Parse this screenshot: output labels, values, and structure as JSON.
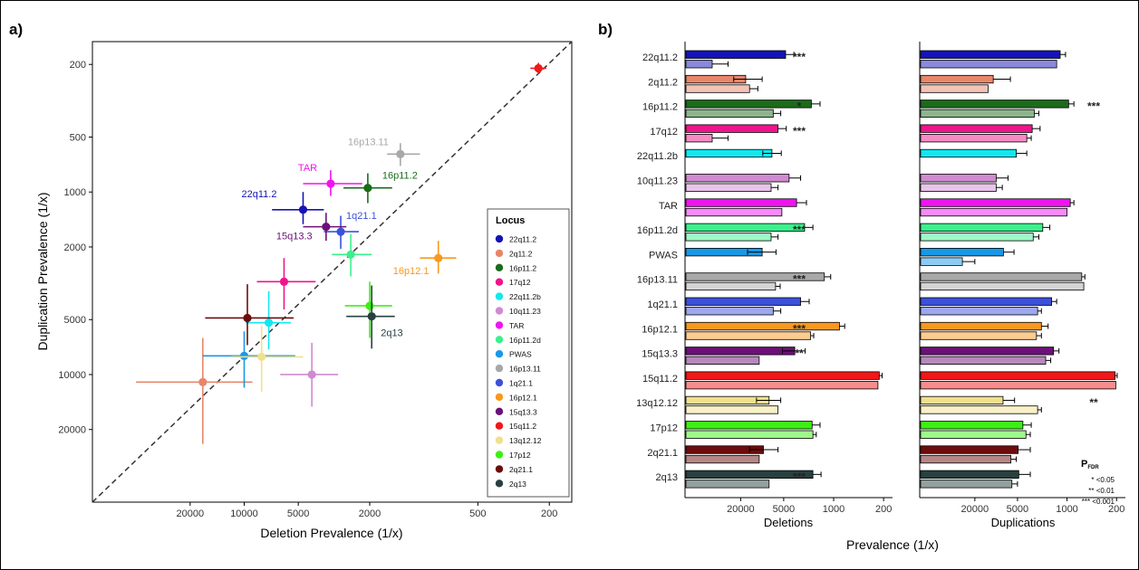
{
  "panel_a": {
    "tag": "a)",
    "chart_data": {
      "type": "scatter",
      "xlabel": "Deletion Prevalence (1/x)",
      "ylabel": "Duplication Prevalence (1/x)",
      "scale": "log (reversed)",
      "xlim": [
        70000,
        150
      ],
      "ylim": [
        50000,
        150
      ],
      "x_ticks": [
        20000,
        10000,
        5000,
        2000,
        500,
        200
      ],
      "y_ticks": [
        200,
        500,
        1000,
        2000,
        5000,
        10000,
        20000
      ],
      "grid": false,
      "legend_title": "Locus",
      "legend_position": "right",
      "diagonal": "x = y (dashed)",
      "points": [
        {
          "locus": "22q11.2",
          "x": 4700,
          "y": 1250,
          "x_err": [
            7000,
            3600
          ],
          "y_err": [
            1500,
            1000
          ],
          "color": "#1414b8",
          "label": "22q11.2"
        },
        {
          "locus": "2q11.2",
          "x": 17000,
          "y": 11000,
          "x_err": [
            40000,
            9000
          ],
          "y_err": [
            24000,
            6300
          ],
          "color": "#e8866c",
          "label": ""
        },
        {
          "locus": "16p11.2",
          "x": 2050,
          "y": 950,
          "x_err": [
            2800,
            1500
          ],
          "y_err": [
            1150,
            790
          ],
          "color": "#1a6b1a",
          "label": "16p11.2"
        },
        {
          "locus": "17q12",
          "x": 6000,
          "y": 3100,
          "x_err": [
            8500,
            4000
          ],
          "y_err": [
            4400,
            2300
          ],
          "color": "#f0148c",
          "label": ""
        },
        {
          "locus": "22q11.2b",
          "x": 7300,
          "y": 5200,
          "x_err": [
            9800,
            5500
          ],
          "y_err": [
            7300,
            3500
          ],
          "color": "#10e8f0",
          "label": ""
        },
        {
          "locus": "10q11.23",
          "x": 4200,
          "y": 10000,
          "x_err": [
            6300,
            3000
          ],
          "y_err": [
            15000,
            6700
          ],
          "color": "#d08ad0",
          "label": ""
        },
        {
          "locus": "TAR",
          "x": 3300,
          "y": 900,
          "x_err": [
            4700,
            2200
          ],
          "y_err": [
            1050,
            760
          ],
          "color": "#f014f0",
          "label": "TAR"
        },
        {
          "locus": "16p11.2d",
          "x": 2550,
          "y": 2200,
          "x_err": [
            3250,
            1950
          ],
          "y_err": [
            2900,
            1700
          ],
          "color": "#3cf08c",
          "label": ""
        },
        {
          "locus": "PWAS",
          "x": 10000,
          "y": 7900,
          "x_err": [
            17000,
            5200
          ],
          "y_err": [
            11800,
            5800
          ],
          "color": "#1898e8",
          "label": ""
        },
        {
          "locus": "16p13.11",
          "x": 1350,
          "y": 620,
          "x_err": [
            1600,
            1050
          ],
          "y_err": [
            720,
            540
          ],
          "color": "#a8a8a8",
          "label": "16p13.11"
        },
        {
          "locus": "1q21.1",
          "x": 2900,
          "y": 1650,
          "x_err": [
            3600,
            2300
          ],
          "y_err": [
            2050,
            1350
          ],
          "color": "#3c50dc",
          "label": "1q21.1"
        },
        {
          "locus": "16p12.1",
          "x": 830,
          "y": 2300,
          "x_err": [
            1050,
            660
          ],
          "y_err": [
            2800,
            1850
          ],
          "color": "#f89820",
          "label": "16p12.1"
        },
        {
          "locus": "15q13.3",
          "x": 3500,
          "y": 1550,
          "x_err": [
            4700,
            2700
          ],
          "y_err": [
            1850,
            1300
          ],
          "color": "#6c1078",
          "label": "15q13.3"
        },
        {
          "locus": "15q11.2",
          "x": 230,
          "y": 210,
          "x_err": [
            255,
            208
          ],
          "y_err": [
            225,
            196
          ],
          "color": "#f01818",
          "label": ""
        },
        {
          "locus": "13q12.12",
          "x": 8000,
          "y": 8000,
          "x_err": [
            11800,
            4700
          ],
          "y_err": [
            12400,
            5400
          ],
          "color": "#f0e08c",
          "label": ""
        },
        {
          "locus": "17p12",
          "x": 2000,
          "y": 4200,
          "x_err": [
            2750,
            1500
          ],
          "y_err": [
            6300,
            3100
          ],
          "color": "#3cf014",
          "label": ""
        },
        {
          "locus": "2q21.1",
          "x": 9600,
          "y": 4900,
          "x_err": [
            16500,
            5300
          ],
          "y_err": [
            6900,
            3200
          ],
          "color": "#6c0c0c",
          "label": ""
        },
        {
          "locus": "2q13",
          "x": 1950,
          "y": 4800,
          "x_err": [
            2700,
            1450
          ],
          "y_err": [
            7200,
            3250
          ],
          "color": "#284040",
          "label": "2q13"
        }
      ]
    }
  },
  "panel_b": {
    "tag": "b)",
    "shared_xlabel": "Prevalence (1/x)",
    "chart_data": [
      {
        "type": "bar",
        "orientation": "horizontal",
        "xlabel": "Deletions",
        "x_ticks": [
          20000,
          5000,
          1000,
          200
        ],
        "scale": "log (reversed)",
        "categories": [
          "22q11.2",
          "2q11.2",
          "16p11.2",
          "17q12",
          "22q11.2b",
          "10q11.23",
          "TAR",
          "16p11.2d",
          "PWAS",
          "16p13.11",
          "1q21.1",
          "16p12.1",
          "15q13.3",
          "15q11.2",
          "13q12.12",
          "17p12",
          "2q21.1",
          "2q13"
        ],
        "series": [
          {
            "values": [
              4700,
              17000,
              2050,
              6000,
              7300,
              4200,
              3300,
              2550,
              10000,
              1350,
              2900,
              830,
              3500,
              230,
              8000,
              2000,
              9600,
              1950
            ],
            "err_hi": [
              3600,
              10000,
              1550,
              4600,
              5400,
              2900,
              2400,
              1950,
              6400,
              1100,
              2200,
              700,
              2500,
              210,
              5500,
              1550,
              6000,
              1500
            ],
            "err_lo": [
              null,
              25000,
              null,
              null,
              9800,
              null,
              null,
              null,
              16000,
              null,
              null,
              null,
              5200,
              null,
              12000,
              null,
              15000,
              null
            ]
          },
          {
            "values": [
              50000,
              15000,
              7000,
              50000,
              null,
              7500,
              5300,
              7500,
              null,
              6500,
              7000,
              2100,
              11000,
              240,
              6000,
              1950,
              11000,
              8000
            ],
            "err_hi": [
              30000,
              11500,
              5500,
              null,
              null,
              6000,
              null,
              6000,
              null,
              5600,
              5500,
              1900,
              null,
              null,
              null,
              1750,
              null,
              null
            ],
            "err_lo": [
              null,
              null,
              null,
              30000,
              null,
              null,
              null,
              null,
              null,
              null,
              null,
              null,
              null,
              null,
              null,
              null,
              null,
              null
            ]
          }
        ],
        "significance": [
          "***",
          "",
          "*",
          "***",
          "",
          "",
          "",
          "***",
          "",
          "***",
          "",
          "***",
          "**",
          "",
          "",
          "",
          "",
          "***"
        ]
      },
      {
        "type": "bar",
        "orientation": "horizontal",
        "xlabel": "Duplications",
        "x_ticks": [
          20000,
          5000,
          1000,
          200
        ],
        "scale": "log (reversed)",
        "categories": [
          "22q11.2",
          "2q11.2",
          "16p11.2",
          "17q12",
          "22q11.2b",
          "10q11.23",
          "TAR",
          "16p11.2d",
          "PWAS",
          "16p13.11",
          "1q21.1",
          "16p12.1",
          "15q13.3",
          "15q11.2",
          "13q12.12",
          "17p12",
          "2q21.1",
          "2q13"
        ],
        "series": [
          {
            "values": [
              1250,
              11000,
              950,
              3100,
              5200,
              10000,
              900,
              2200,
              7900,
              620,
              1650,
              2300,
              1550,
              210,
              8000,
              4200,
              4900,
              4800
            ],
            "err_hi": [
              1050,
              6300,
              800,
              2400,
              3700,
              6800,
              800,
              1750,
              5600,
              560,
              1400,
              1850,
              1300,
              196,
              5500,
              3200,
              3300,
              3300
            ],
            "err_lo": [
              null,
              null,
              null,
              null,
              null,
              null,
              null,
              null,
              null,
              null,
              null,
              null,
              null,
              null,
              null,
              null,
              null,
              null
            ]
          },
          {
            "values": [
              1400,
              13000,
              2900,
              3700,
              null,
              10000,
              1000,
              3000,
              30000,
              580,
              2600,
              2700,
              2000,
              205,
              2600,
              3800,
              6200,
              6000
            ],
            "err_hi": [
              null,
              null,
              2500,
              3200,
              null,
              8200,
              null,
              2500,
              20000,
              null,
              2300,
              2300,
              1700,
              null,
              2300,
              3300,
              5200,
              5000
            ],
            "err_lo": [
              null,
              null,
              null,
              null,
              null,
              null,
              null,
              null,
              null,
              null,
              null,
              null,
              null,
              null,
              null,
              null,
              null,
              null
            ]
          }
        ],
        "significance": [
          "",
          "",
          "***",
          "",
          "",
          "",
          "",
          "",
          "",
          "",
          "",
          "",
          "",
          "",
          "**",
          "",
          "",
          ""
        ]
      }
    ],
    "pfdr_legend": {
      "title": "P",
      "subscript": "FDR",
      "rows": [
        "* <0.05",
        "** <0.01",
        "*** <0.001"
      ]
    }
  }
}
